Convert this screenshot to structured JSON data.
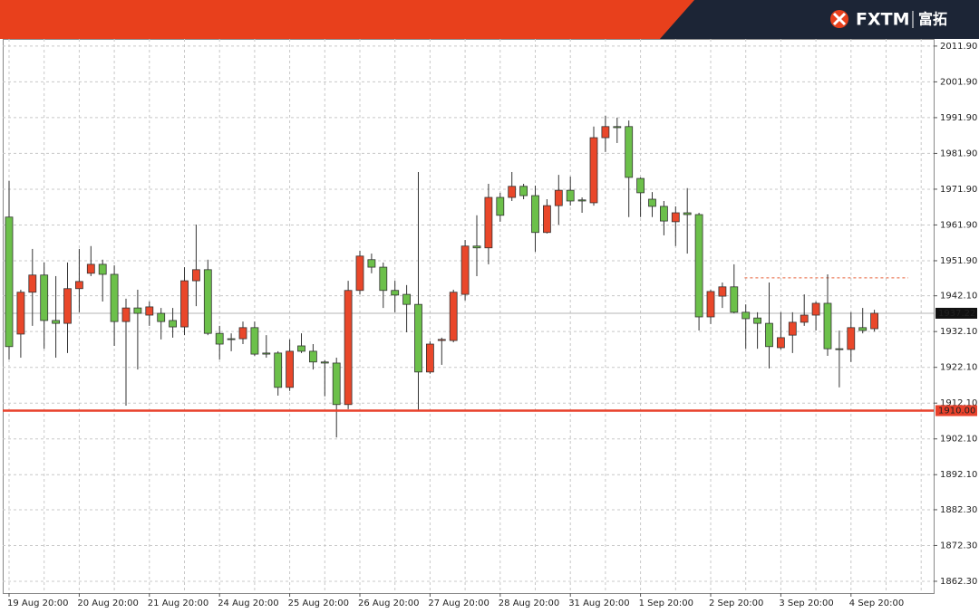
{
  "header": {
    "brand": "FXTM",
    "brand_cn": "富拓"
  },
  "chart_data": {
    "type": "candlestick",
    "categories": [
      "19 Aug 20:00",
      null,
      null,
      null,
      null,
      null,
      "20 Aug 20:00",
      null,
      null,
      null,
      null,
      null,
      "21 Aug 20:00",
      null,
      null,
      null,
      null,
      null,
      "24 Aug 20:00",
      null,
      null,
      null,
      null,
      null,
      "25 Aug 20:00",
      null,
      null,
      null,
      null,
      null,
      "26 Aug 20:00",
      null,
      null,
      null,
      null,
      null,
      "27 Aug 20:00",
      null,
      null,
      null,
      null,
      null,
      "28 Aug 20:00",
      null,
      null,
      null,
      null,
      null,
      "31 Aug 20:00",
      null,
      null,
      null,
      null,
      null,
      "1 Sep 20:00",
      null,
      null,
      null,
      null,
      null,
      "2 Sep 20:00",
      null,
      null,
      null,
      null,
      null,
      "3 Sep 20:00",
      null,
      null,
      null,
      null,
      null,
      "4 Sep 20:00",
      null,
      null
    ],
    "open": [
      1964.1,
      1931.4,
      1943.1,
      1947.9,
      1935.2,
      1934.4,
      1944.1,
      1948.4,
      1950.9,
      1948.1,
      1934.9,
      1938.7,
      1936.7,
      1937.2,
      1935.2,
      1933.4,
      1946.3,
      1949.4,
      1931.6,
      1930.1,
      1930.1,
      1933.2,
      1926.1,
      1926.1,
      1916.5,
      1928.1,
      1926.6,
      1923.6,
      1923.3,
      1911.7,
      1943.6,
      1952.2,
      1950.1,
      1943.6,
      1942.5,
      1939.7,
      1920.8,
      1929.6,
      1929.6,
      1942.5,
      1956.0,
      1955.5,
      1969.6,
      1969.6,
      1972.7,
      1970.1,
      1959.8,
      1967.3,
      1971.6,
      1968.9,
      1968.1,
      1986.3,
      1989.4,
      1989.4,
      1974.9,
      1969.1,
      1967.1,
      1962.8,
      1965.3,
      1964.8,
      1936.2,
      1942.0,
      1944.6,
      1937.5,
      1935.9,
      1934.4,
      1927.6,
      1931.1,
      1934.7,
      1936.7,
      1940.0,
      1927.3,
      1927.1,
      1933.2,
      1932.9
    ],
    "high": [
      1974.2,
      1943.8,
      1955.2,
      1951.4,
      1947.6,
      1951.4,
      1955.2,
      1956.0,
      1952.2,
      1950.6,
      1941.3,
      1943.8,
      1940.5,
      1938.7,
      1938.7,
      1950.1,
      1962.0,
      1952.2,
      1933.7,
      1931.6,
      1934.9,
      1934.9,
      1931.1,
      1926.6,
      1929.9,
      1931.6,
      1928.6,
      1924.1,
      1924.8,
      1946.3,
      1954.7,
      1953.9,
      1951.4,
      1946.3,
      1945.1,
      1976.7,
      1929.4,
      1930.4,
      1943.8,
      1957.7,
      1964.6,
      1973.4,
      1970.9,
      1976.7,
      1973.4,
      1972.9,
      1969.1,
      1975.9,
      1975.4,
      1969.6,
      1989.4,
      1992.4,
      1991.9,
      1991.1,
      1975.2,
      1971.1,
      1968.6,
      1967.1,
      1972.2,
      1965.3,
      1943.8,
      1945.8,
      1950.9,
      1939.7,
      1937.5,
      1945.8,
      1937.5,
      1937.5,
      1942.5,
      1940.5,
      1948.1,
      1932.4,
      1937.5,
      1938.7,
      1938.2
    ],
    "low": [
      1924.3,
      1924.8,
      1933.7,
      1927.3,
      1924.8,
      1926.1,
      1937.5,
      1947.6,
      1940.5,
      1928.1,
      1911.4,
      1921.5,
      1933.7,
      1929.9,
      1930.4,
      1931.1,
      1939.2,
      1931.1,
      1924.3,
      1926.6,
      1928.6,
      1925.3,
      1924.8,
      1914.2,
      1915.5,
      1926.1,
      1921.5,
      1914.0,
      1902.5,
      1910.4,
      1942.5,
      1948.4,
      1938.7,
      1937.5,
      1931.9,
      1910.1,
      1920.3,
      1922.8,
      1929.1,
      1940.8,
      1947.6,
      1950.9,
      1962.8,
      1968.6,
      1969.1,
      1954.4,
      1959.5,
      1962.0,
      1967.3,
      1965.3,
      1967.3,
      1982.3,
      1984.8,
      1964.1,
      1964.1,
      1964.1,
      1959.0,
      1956.0,
      1953.9,
      1932.4,
      1934.2,
      1938.7,
      1937.2,
      1927.3,
      1927.3,
      1921.8,
      1927.1,
      1926.1,
      1933.7,
      1932.4,
      1925.3,
      1916.5,
      1923.6,
      1931.6,
      1932.1
    ],
    "close": [
      1927.9,
      1943.1,
      1947.9,
      1935.2,
      1934.4,
      1944.1,
      1946.1,
      1950.9,
      1948.1,
      1934.9,
      1938.7,
      1937.2,
      1939.0,
      1934.9,
      1933.4,
      1946.3,
      1949.4,
      1931.6,
      1928.6,
      1929.9,
      1933.2,
      1925.8,
      1925.8,
      1916.5,
      1926.6,
      1926.6,
      1923.6,
      1923.3,
      1911.7,
      1943.6,
      1953.2,
      1950.1,
      1943.6,
      1942.3,
      1939.7,
      1920.8,
      1928.6,
      1929.9,
      1943.1,
      1956.0,
      1955.5,
      1969.6,
      1964.6,
      1972.7,
      1970.1,
      1959.8,
      1967.3,
      1971.6,
      1968.6,
      1968.6,
      1986.3,
      1989.4,
      1989.1,
      1975.2,
      1970.9,
      1967.1,
      1963.0,
      1965.3,
      1964.8,
      1936.2,
      1943.3,
      1944.6,
      1937.5,
      1935.7,
      1934.4,
      1927.9,
      1930.4,
      1934.7,
      1936.7,
      1940.0,
      1927.3,
      1927.1,
      1933.2,
      1932.4,
      1937.22
    ],
    "up_color": "#e9472a",
    "down_color": "#6cc04a",
    "ylim": [
      1859.0,
      2013.9
    ],
    "yticks": [
      {
        "value": 2011.9,
        "label": "2011.90"
      },
      {
        "value": 2001.9,
        "label": "2001.90"
      },
      {
        "value": 1991.9,
        "label": "1991.90"
      },
      {
        "value": 1981.9,
        "label": "1981.90"
      },
      {
        "value": 1971.9,
        "label": "1971.90"
      },
      {
        "value": 1961.9,
        "label": "1961.90"
      },
      {
        "value": 1951.9,
        "label": "1951.90"
      },
      {
        "value": 1942.1,
        "label": "1942.10"
      },
      {
        "value": 1932.1,
        "label": "1932.10"
      },
      {
        "value": 1922.1,
        "label": "1922.10"
      },
      {
        "value": 1912.1,
        "label": "1912.10"
      },
      {
        "value": 1902.1,
        "label": "1902.10"
      },
      {
        "value": 1892.1,
        "label": "1892.10"
      },
      {
        "value": 1882.3,
        "label": "1882.30"
      },
      {
        "value": 1872.3,
        "label": "1872.30"
      },
      {
        "value": 1862.3,
        "label": "1862.30"
      }
    ],
    "grid": true,
    "support_level": {
      "value": 1910,
      "label": "1910.00",
      "color": "#e8412b"
    },
    "resistance_level": {
      "value": 1947.1,
      "color": "#e8603a"
    }
  }
}
